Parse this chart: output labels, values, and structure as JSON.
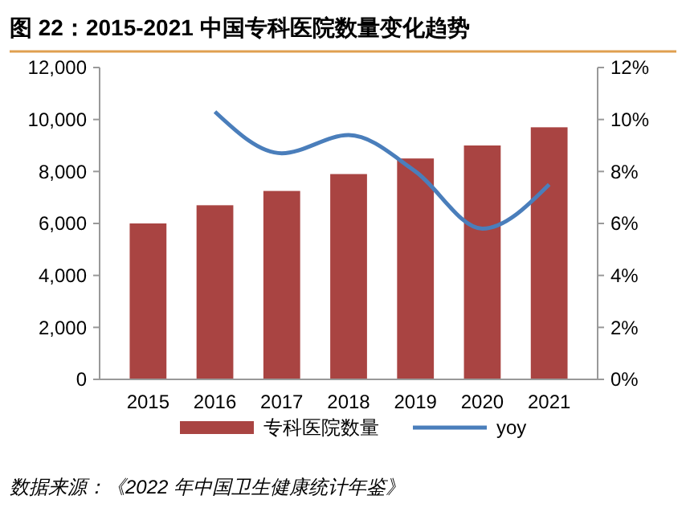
{
  "chart_data": {
    "type": "bar",
    "title": "图 22：2015-2021 中国专科医院数量变化趋势",
    "categories": [
      "2015",
      "2016",
      "2017",
      "2018",
      "2019",
      "2020",
      "2021"
    ],
    "series": [
      {
        "name": "专科医院数量",
        "color": "#a94442",
        "values": [
          6000,
          6700,
          7250,
          7900,
          8500,
          9000,
          9700
        ]
      },
      {
        "name": "yoy",
        "type": "line",
        "axis": "y2",
        "color": "#4a7ebb",
        "values": [
          null,
          10.3,
          8.7,
          9.4,
          8.0,
          5.8,
          7.5
        ]
      }
    ],
    "ylim": [
      0,
      12000
    ],
    "yticks": [
      {
        "value": 0,
        "label": "0"
      },
      {
        "value": 2000,
        "label": "2,000"
      },
      {
        "value": 4000,
        "label": "4,000"
      },
      {
        "value": 6000,
        "label": "6,000"
      },
      {
        "value": 8000,
        "label": "8,000"
      },
      {
        "value": 10000,
        "label": "10,000"
      },
      {
        "value": 12000,
        "label": "12,000"
      }
    ],
    "y2lim": [
      0,
      12
    ],
    "y2ticks": [
      {
        "value": 0,
        "label": "0%"
      },
      {
        "value": 2,
        "label": "2%"
      },
      {
        "value": 4,
        "label": "4%"
      },
      {
        "value": 6,
        "label": "6%"
      },
      {
        "value": 8,
        "label": "8%"
      },
      {
        "value": 10,
        "label": "10%"
      },
      {
        "value": 12,
        "label": "12%"
      }
    ],
    "legend": "bottom",
    "marker": "none",
    "line_style": "solid",
    "annotations": [
      "数据来源：《2022 年中国卫生健康统计年鉴》"
    ]
  }
}
